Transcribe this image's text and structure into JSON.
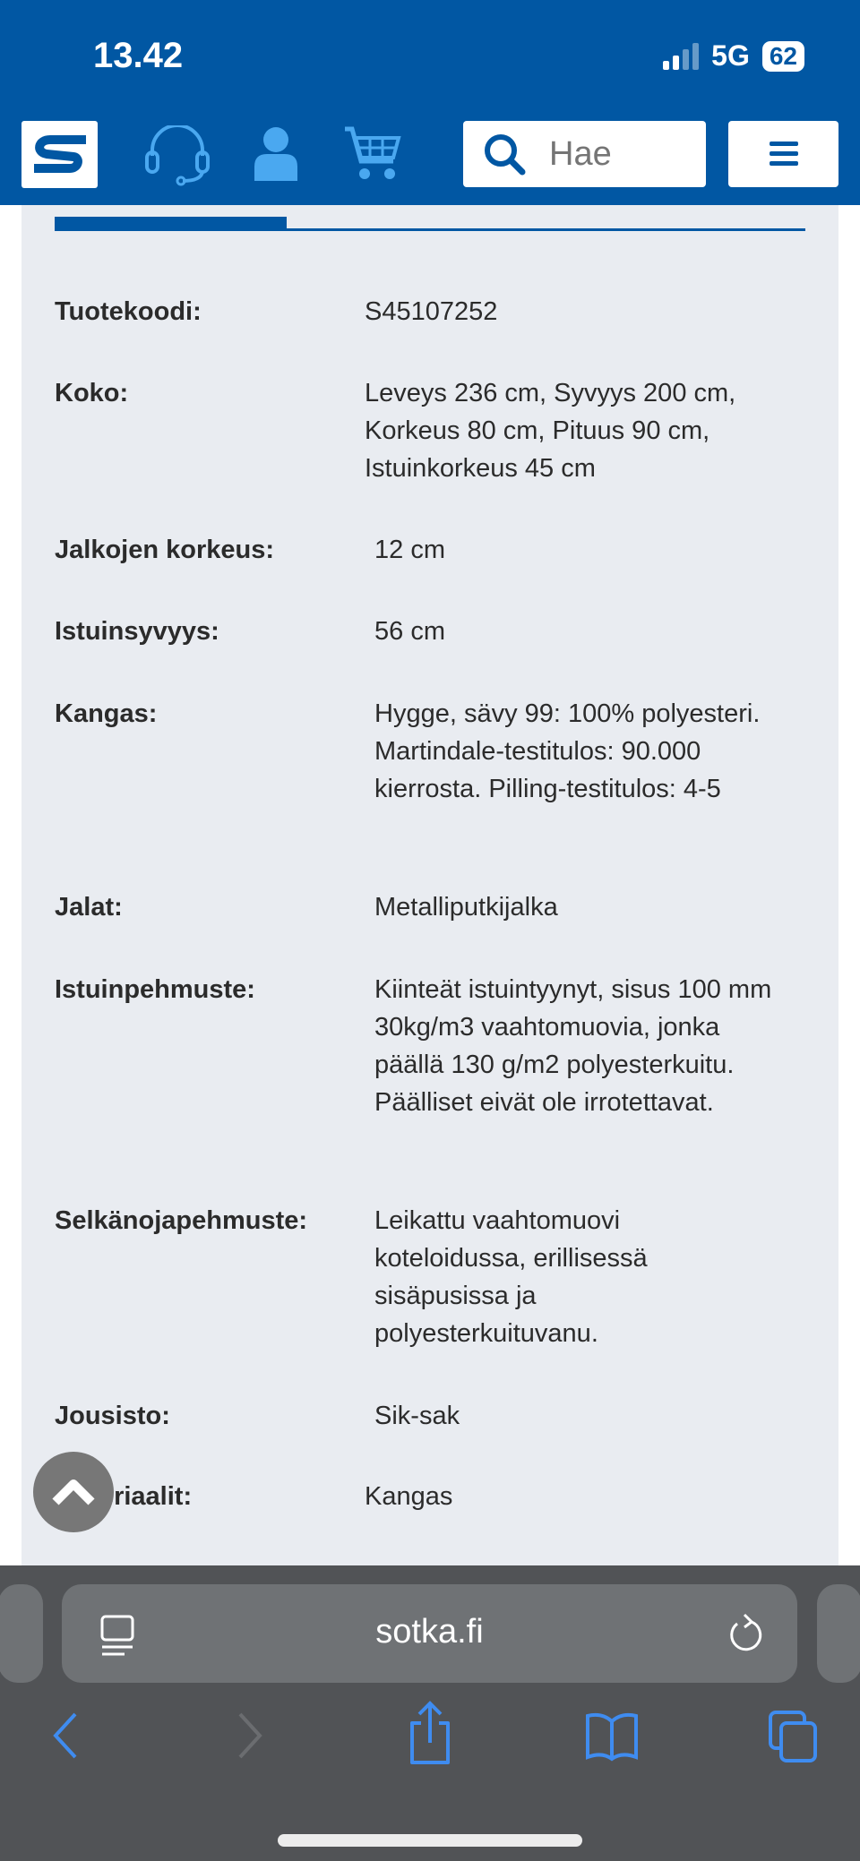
{
  "status_bar": {
    "time": "13.42",
    "network": "5G",
    "battery": "62"
  },
  "header": {
    "search_placeholder": "Hae",
    "icons": [
      "sotka-logo",
      "headset-icon",
      "user-icon",
      "cart-icon",
      "search-icon",
      "menu-icon"
    ]
  },
  "colors": {
    "brand": "#0157a3",
    "icon_light": "#4aa8f0",
    "panel": "#e9ecf1"
  },
  "specs": [
    {
      "label": "Tuotekoodi:",
      "value": "S45107252"
    },
    {
      "label": "Koko:",
      "value": "Leveys 236 cm, Syvyys 200 cm, Korkeus 80 cm, Pituus 90 cm, Istuinkorkeus 45 cm"
    },
    {
      "label": "Jalkojen korkeus:",
      "value": "12 cm"
    },
    {
      "label": "Istuinsyvyys:",
      "value": "56 cm"
    },
    {
      "label": "Kangas:",
      "value": "Hygge, sävy 99: 100% polyesteri. Martindale-testitulos: 90.000 kierrosta. Pilling-testitulos: 4-5"
    },
    {
      "label": "Jalat:",
      "value": "Metalliputkijalka"
    },
    {
      "label": "Istuinpehmuste:",
      "value": "Kiinteät istuintyynyt, sisus 100 mm 30kg/m3 vaahtomuovia, jonka päällä 130 g/m2 polyesterkuitu. Päälliset eivät ole irrotettavat."
    },
    {
      "label": "Selkänojapehmuste:",
      "value": "Leikattu vaahtomuovi koteloidussa, erillisessä sisäpusissa ja polyesterkuituvanu."
    },
    {
      "label": "Jousisto:",
      "value": "Sik-sak"
    },
    {
      "label": "Materiaalit:",
      "value": "Kangas"
    }
  ],
  "browser": {
    "url": "sotka.fi"
  }
}
